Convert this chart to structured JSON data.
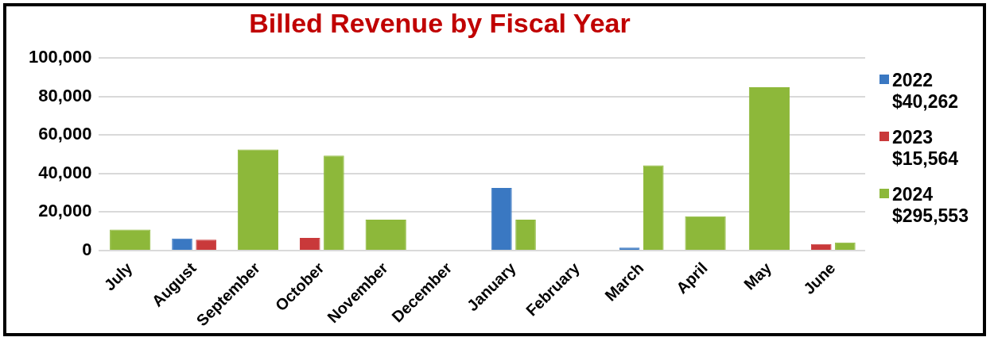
{
  "chart_data": {
    "type": "bar",
    "title": "Billed Revenue by Fiscal Year",
    "categories": [
      "July",
      "August",
      "September",
      "October",
      "November",
      "December",
      "January",
      "February",
      "March",
      "April",
      "May",
      "June"
    ],
    "series": [
      {
        "name": "2022 $40,262",
        "color": "#3a78c2",
        "values": [
          null,
          6300,
          null,
          null,
          null,
          null,
          32500,
          null,
          1500,
          null,
          null,
          null
        ]
      },
      {
        "name": "2023 $15,564",
        "color": "#c9393a",
        "values": [
          null,
          5600,
          null,
          6600,
          null,
          null,
          null,
          null,
          null,
          null,
          null,
          3400
        ]
      },
      {
        "name": "2024 $295,553",
        "color": "#8db83a",
        "values": [
          10900,
          null,
          52500,
          49300,
          16000,
          null,
          16000,
          null,
          44300,
          17800,
          84800,
          4200
        ]
      }
    ],
    "ylim": [
      0,
      100000
    ],
    "yticks": [
      0,
      {
        "value": 20000,
        "label": "20,000"
      },
      {
        "value": 40000,
        "label": "40,000"
      },
      {
        "value": 60000,
        "label": "60,000"
      },
      {
        "value": 80000,
        "label": "80,000"
      },
      {
        "value": 100000,
        "label": "100,000"
      }
    ],
    "grid": "y",
    "legend": "right"
  }
}
